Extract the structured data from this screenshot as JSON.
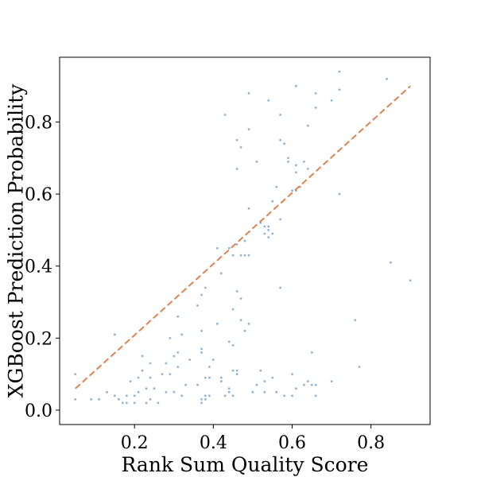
{
  "chart_data": {
    "type": "scatter",
    "title": "",
    "xlabel": "Rank Sum Quality Score",
    "ylabel": "XGBoost Prediction Probability",
    "xlim": [
      0.01,
      0.95
    ],
    "ylim": [
      -0.04,
      0.98
    ],
    "xticks": [
      0.2,
      0.4,
      0.6,
      0.8
    ],
    "yticks": [
      0.0,
      0.2,
      0.4,
      0.6,
      0.8
    ],
    "xtick_labels": [
      "0.2",
      "0.4",
      "0.6",
      "0.8"
    ],
    "ytick_labels": [
      "0.0",
      "0.2",
      "0.4",
      "0.6",
      "0.8"
    ],
    "grid": false,
    "colors": {
      "points": "#8fb3d3",
      "reference_line": "#dd8452"
    },
    "reference_line": {
      "x": [
        0.05,
        0.9
      ],
      "y": [
        0.06,
        0.9
      ],
      "style": "dashed"
    },
    "series": [
      {
        "points": [
          [
            0.05,
            0.1
          ],
          [
            0.05,
            0.03
          ],
          [
            0.09,
            0.03
          ],
          [
            0.11,
            0.03
          ],
          [
            0.13,
            0.05
          ],
          [
            0.15,
            0.21
          ],
          [
            0.15,
            0.04
          ],
          [
            0.16,
            0.03
          ],
          [
            0.17,
            0.02
          ],
          [
            0.18,
            0.04
          ],
          [
            0.18,
            0.02
          ],
          [
            0.19,
            0.08
          ],
          [
            0.2,
            0.02
          ],
          [
            0.2,
            0.04
          ],
          [
            0.21,
            0.05
          ],
          [
            0.21,
            0.09
          ],
          [
            0.22,
            0.11
          ],
          [
            0.22,
            0.15
          ],
          [
            0.23,
            0.06
          ],
          [
            0.23,
            0.02
          ],
          [
            0.24,
            0.13
          ],
          [
            0.24,
            0.03
          ],
          [
            0.24,
            0.09
          ],
          [
            0.25,
            0.06
          ],
          [
            0.26,
            0.02
          ],
          [
            0.27,
            0.1
          ],
          [
            0.28,
            0.05
          ],
          [
            0.28,
            0.13
          ],
          [
            0.29,
            0.2
          ],
          [
            0.29,
            0.1
          ],
          [
            0.3,
            0.05
          ],
          [
            0.3,
            0.15
          ],
          [
            0.31,
            0.12
          ],
          [
            0.31,
            0.26
          ],
          [
            0.31,
            0.16
          ],
          [
            0.32,
            0.04
          ],
          [
            0.32,
            0.21
          ],
          [
            0.33,
            0.07
          ],
          [
            0.34,
            0.14
          ],
          [
            0.36,
            0.29
          ],
          [
            0.36,
            0.07
          ],
          [
            0.37,
            0.32
          ],
          [
            0.37,
            0.22
          ],
          [
            0.37,
            0.17
          ],
          [
            0.37,
            0.16
          ],
          [
            0.37,
            0.03
          ],
          [
            0.37,
            0.02
          ],
          [
            0.38,
            0.34
          ],
          [
            0.38,
            0.09
          ],
          [
            0.38,
            0.04
          ],
          [
            0.38,
            0.03
          ],
          [
            0.39,
            0.04
          ],
          [
            0.39,
            0.09
          ],
          [
            0.39,
            0.12
          ],
          [
            0.4,
            0.14
          ],
          [
            0.41,
            0.45
          ],
          [
            0.41,
            0.24
          ],
          [
            0.42,
            0.38
          ],
          [
            0.42,
            0.09
          ],
          [
            0.42,
            0.08
          ],
          [
            0.43,
            0.04
          ],
          [
            0.43,
            0.82
          ],
          [
            0.44,
            0.45
          ],
          [
            0.44,
            0.19
          ],
          [
            0.44,
            0.06
          ],
          [
            0.44,
            0.05
          ],
          [
            0.45,
            0.43
          ],
          [
            0.45,
            0.28
          ],
          [
            0.45,
            0.18
          ],
          [
            0.45,
            0.11
          ],
          [
            0.45,
            0.04
          ],
          [
            0.46,
            0.75
          ],
          [
            0.46,
            0.67
          ],
          [
            0.46,
            0.46
          ],
          [
            0.46,
            0.33
          ],
          [
            0.46,
            0.1
          ],
          [
            0.46,
            0.11
          ],
          [
            0.47,
            0.73
          ],
          [
            0.47,
            0.43
          ],
          [
            0.47,
            0.31
          ],
          [
            0.47,
            0.25
          ],
          [
            0.48,
            0.47
          ],
          [
            0.48,
            0.43
          ],
          [
            0.48,
            0.22
          ],
          [
            0.49,
            0.88
          ],
          [
            0.49,
            0.78
          ],
          [
            0.49,
            0.56
          ],
          [
            0.49,
            0.43
          ],
          [
            0.49,
            0.24
          ],
          [
            0.5,
            0.05
          ],
          [
            0.51,
            0.69
          ],
          [
            0.51,
            0.07
          ],
          [
            0.52,
            0.11
          ],
          [
            0.52,
            0.52
          ],
          [
            0.53,
            0.51
          ],
          [
            0.53,
            0.49
          ],
          [
            0.53,
            0.08
          ],
          [
            0.53,
            0.05
          ],
          [
            0.54,
            0.5
          ],
          [
            0.54,
            0.51
          ],
          [
            0.54,
            0.48
          ],
          [
            0.54,
            0.86
          ],
          [
            0.55,
            0.58
          ],
          [
            0.55,
            0.49
          ],
          [
            0.55,
            0.09
          ],
          [
            0.56,
            0.62
          ],
          [
            0.56,
            0.05
          ],
          [
            0.57,
            0.82
          ],
          [
            0.57,
            0.75
          ],
          [
            0.57,
            0.53
          ],
          [
            0.57,
            0.34
          ],
          [
            0.58,
            0.74
          ],
          [
            0.58,
            0.04
          ],
          [
            0.59,
            0.7
          ],
          [
            0.59,
            0.69
          ],
          [
            0.6,
            0.61
          ],
          [
            0.6,
            0.1
          ],
          [
            0.6,
            0.04
          ],
          [
            0.61,
            0.9
          ],
          [
            0.61,
            0.68
          ],
          [
            0.61,
            0.66
          ],
          [
            0.61,
            0.61
          ],
          [
            0.61,
            0.06
          ],
          [
            0.62,
            0.62
          ],
          [
            0.63,
            0.69
          ],
          [
            0.63,
            0.07
          ],
          [
            0.64,
            0.79
          ],
          [
            0.64,
            0.67
          ],
          [
            0.64,
            0.08
          ],
          [
            0.65,
            0.16
          ],
          [
            0.65,
            0.07
          ],
          [
            0.66,
            0.88
          ],
          [
            0.66,
            0.84
          ],
          [
            0.66,
            0.07
          ],
          [
            0.66,
            0.04
          ],
          [
            0.7,
            0.86
          ],
          [
            0.7,
            0.08
          ],
          [
            0.72,
            0.94
          ],
          [
            0.72,
            0.89
          ],
          [
            0.72,
            0.6
          ],
          [
            0.76,
            0.25
          ],
          [
            0.77,
            0.12
          ],
          [
            0.84,
            0.92
          ],
          [
            0.85,
            0.41
          ],
          [
            0.9,
            0.36
          ]
        ]
      }
    ]
  }
}
